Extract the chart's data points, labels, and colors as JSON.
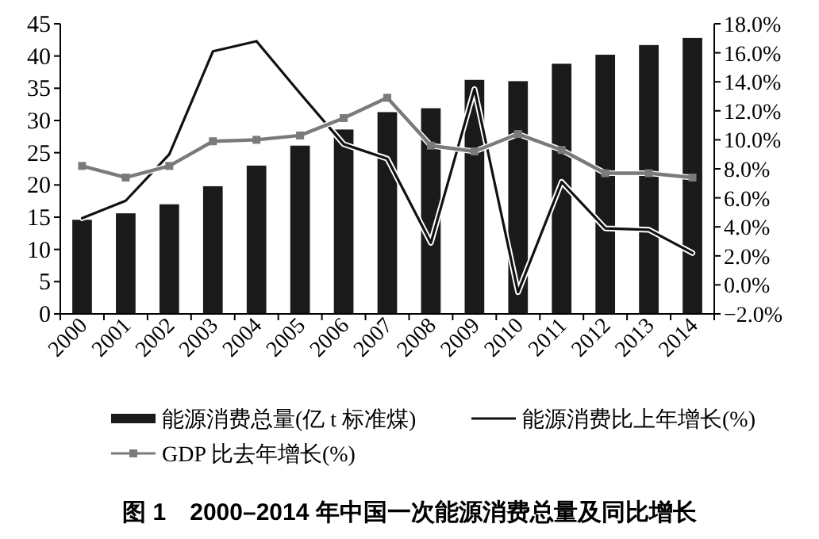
{
  "chart_data": {
    "type": "bar",
    "title": "图 1　2000–2014 年中国一次能源消费总量及同比增长",
    "categories": [
      "2000",
      "2001",
      "2002",
      "2003",
      "2004",
      "2005",
      "2006",
      "2007",
      "2008",
      "2009",
      "2010",
      "2011",
      "2012",
      "2013",
      "2014"
    ],
    "series": [
      {
        "name": "能源消费总量(亿 t 标准煤)",
        "color": "#1a1a1a",
        "values": [
          14.6,
          15.6,
          17.0,
          19.8,
          23.0,
          26.1,
          28.6,
          31.3,
          31.9,
          36.3,
          36.1,
          38.8,
          40.2,
          41.7,
          42.8
        ]
      },
      {
        "name": "能源消费比上年增长(%)",
        "type": "line",
        "axis": "y2",
        "color": "#111111",
        "marker": "none",
        "values": [
          4.6,
          5.8,
          9.0,
          16.1,
          16.8,
          13.2,
          9.7,
          8.7,
          2.9,
          13.5,
          -0.5,
          7.1,
          3.9,
          3.8,
          2.2
        ]
      },
      {
        "name": "GDP 比去年增长(%)",
        "type": "line",
        "axis": "y2",
        "color": "#7a7a7a",
        "marker": "square",
        "values": [
          8.2,
          7.4,
          8.2,
          9.9,
          10.0,
          10.3,
          11.5,
          12.9,
          9.6,
          9.2,
          10.4,
          9.3,
          7.7,
          7.7,
          7.4
        ]
      }
    ],
    "ylim": [
      0,
      45
    ],
    "yticks": [
      0,
      5,
      10,
      15,
      20,
      25,
      30,
      35,
      40,
      45
    ],
    "y2lim": [
      -2,
      18
    ],
    "y2ticks": [
      {
        "value": -2,
        "label": "−2.0%"
      },
      {
        "value": 0,
        "label": "0.0%"
      },
      {
        "value": 2,
        "label": "2.0%"
      },
      {
        "value": 4,
        "label": "4.0%"
      },
      {
        "value": 6,
        "label": "6.0%"
      },
      {
        "value": 8,
        "label": "8.0%"
      },
      {
        "value": 10,
        "label": "10.0%"
      },
      {
        "value": 12,
        "label": "12.0%"
      },
      {
        "value": 14,
        "label": "14.0%"
      },
      {
        "value": 16,
        "label": "16.0%"
      },
      {
        "value": 18,
        "label": "18.0%"
      }
    ],
    "legend": "bottom",
    "grid": false
  }
}
